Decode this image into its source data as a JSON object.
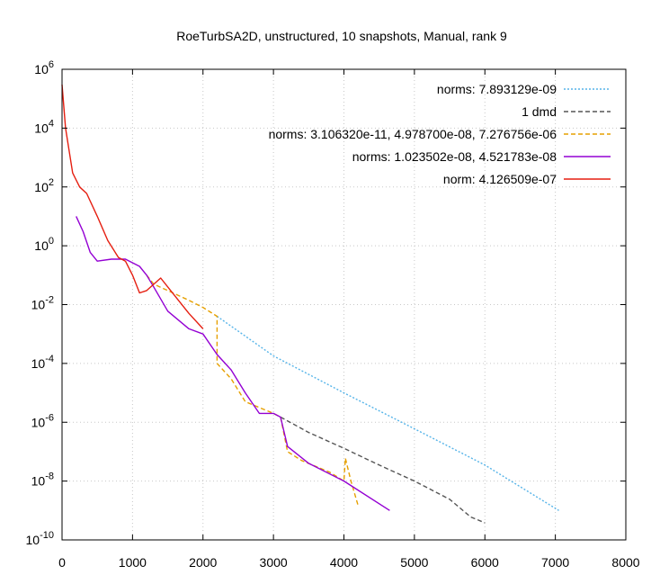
{
  "chart_data": {
    "type": "line",
    "title": "RoeTurbSA2D, unstructured, 10 snapshots, Manual, rank 9",
    "xlabel": "",
    "ylabel": "",
    "xlim": [
      0,
      8000
    ],
    "ylim_log10": [
      -10,
      6
    ],
    "yscale": "log",
    "grid": true,
    "legend_position": "top-right",
    "x_ticks": [
      "0",
      "1000",
      "2000",
      "3000",
      "4000",
      "5000",
      "6000",
      "7000",
      "8000"
    ],
    "y_ticks": [
      {
        "base": "10",
        "exp": "6",
        "value": 1000000.0
      },
      {
        "base": "10",
        "exp": "4",
        "value": 10000.0
      },
      {
        "base": "10",
        "exp": "2",
        "value": 100.0
      },
      {
        "base": "10",
        "exp": "0",
        "value": 1.0
      },
      {
        "base": "10",
        "exp": "-2",
        "value": 0.01
      },
      {
        "base": "10",
        "exp": "-4",
        "value": 0.0001
      },
      {
        "base": "10",
        "exp": "-6",
        "value": 1e-06
      },
      {
        "base": "10",
        "exp": "-8",
        "value": 1e-08
      },
      {
        "base": "10",
        "exp": "-10",
        "value": 1e-10
      }
    ],
    "series": [
      {
        "name": "norms: 7.893129e-09",
        "color": "#56b4e9",
        "dash": "dotted",
        "points": [
          [
            2200,
            0.004
          ],
          [
            3000,
            0.00018
          ],
          [
            4000,
            1e-05
          ],
          [
            5000,
            6e-07
          ],
          [
            6000,
            3.5e-08
          ],
          [
            7050,
            1e-09
          ]
        ]
      },
      {
        "name": "1 dmd",
        "color": "#555555",
        "dash": "dashed",
        "points": [
          [
            3100,
            1.5e-06
          ],
          [
            3500,
            4.5e-07
          ],
          [
            4000,
            1.3e-07
          ],
          [
            4500,
            3.5e-08
          ],
          [
            5000,
            1e-08
          ],
          [
            5500,
            2.4e-09
          ],
          [
            5800,
            6e-10
          ],
          [
            6000,
            3.8e-10
          ]
        ]
      },
      {
        "name": "norms: 3.106320e-11, 4.978700e-08, 7.276756e-06",
        "color": "#e6a000",
        "dash": "dashed",
        "points": [
          [
            1200,
            0.1
          ],
          [
            1300,
            0.05
          ],
          [
            1500,
            0.03
          ],
          [
            1800,
            0.014
          ],
          [
            2000,
            0.008
          ],
          [
            2200,
            0.004
          ],
          [
            2200,
            0.0001
          ],
          [
            2400,
            3e-05
          ],
          [
            2600,
            5e-06
          ],
          [
            3000,
            2e-06
          ],
          [
            3100,
            1.5e-06
          ],
          [
            3200,
            1e-07
          ],
          [
            3400,
            5e-08
          ],
          [
            3800,
            2e-08
          ],
          [
            4000,
            1e-08
          ],
          [
            4020,
            6e-08
          ],
          [
            4100,
            1e-08
          ],
          [
            4200,
            1.5e-09
          ]
        ]
      },
      {
        "name": "norms: 1.023502e-08, 4.521783e-08",
        "color": "#9400d3",
        "dash": "solid",
        "points": [
          [
            200,
            10
          ],
          [
            300,
            3
          ],
          [
            400,
            0.6
          ],
          [
            500,
            0.3
          ],
          [
            700,
            0.35
          ],
          [
            900,
            0.35
          ],
          [
            1100,
            0.2
          ],
          [
            1200,
            0.1
          ],
          [
            1300,
            0.04
          ],
          [
            1500,
            0.006
          ],
          [
            1800,
            0.0015
          ],
          [
            2000,
            0.001
          ],
          [
            2200,
            0.0002
          ],
          [
            2400,
            6e-05
          ],
          [
            2600,
            1e-05
          ],
          [
            2800,
            2e-06
          ],
          [
            3000,
            2e-06
          ],
          [
            3100,
            1.5e-06
          ],
          [
            3200,
            1.5e-07
          ],
          [
            3500,
            4e-08
          ],
          [
            4000,
            1e-08
          ],
          [
            4650,
            1e-09
          ]
        ]
      },
      {
        "name": "norm: 4.126509e-07",
        "color": "#e51e10",
        "dash": "solid",
        "points": [
          [
            0,
            300000
          ],
          [
            50,
            10000
          ],
          [
            150,
            300
          ],
          [
            250,
            100
          ],
          [
            350,
            60
          ],
          [
            500,
            10
          ],
          [
            650,
            1.5
          ],
          [
            800,
            0.4
          ],
          [
            900,
            0.3
          ],
          [
            1000,
            0.1
          ],
          [
            1100,
            0.025
          ],
          [
            1200,
            0.03
          ],
          [
            1400,
            0.08
          ],
          [
            1600,
            0.02
          ],
          [
            1800,
            0.005
          ],
          [
            2000,
            0.0015
          ]
        ]
      }
    ]
  }
}
